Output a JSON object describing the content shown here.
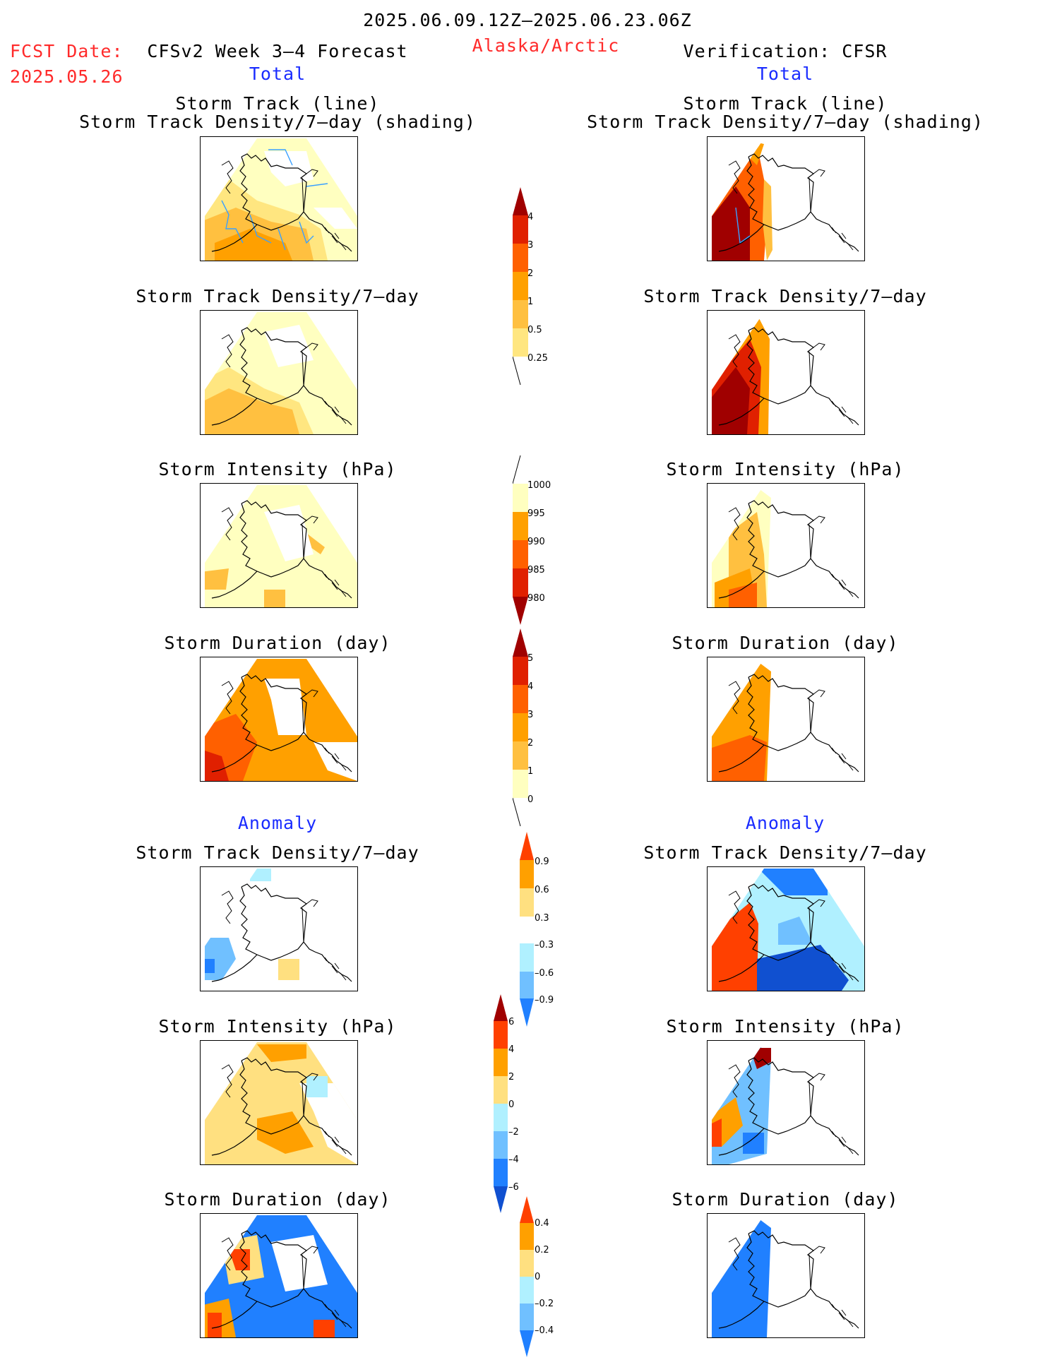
{
  "header": {
    "date_range": "2025.06.09.12Z–2025.06.23.06Z",
    "fcst_date_label": "FCST Date:",
    "fcst_date_value": "2025.05.26",
    "forecast_title": "CFSv2 Week 3–4 Forecast",
    "region": "Alaska/Arctic",
    "verification": "Verification: CFSR",
    "left_section": "Total",
    "right_section": "Total"
  },
  "panel_titles": {
    "track_line": "Storm Track (line)",
    "track_shading": "Storm Track Density/7–day (shading)",
    "density": "Storm Track Density/7–day",
    "intensity": "Storm Intensity (hPa)",
    "duration": "Storm Duration (day)"
  },
  "anomaly": {
    "left": "Anomaly",
    "right": "Anomaly"
  },
  "colorbars": {
    "density_total": [
      "4",
      "3",
      "2",
      "1",
      "0.5",
      "0.25"
    ],
    "intensity_total": [
      "1000",
      "995",
      "990",
      "985",
      "980"
    ],
    "duration_total": [
      "5",
      "4",
      "3",
      "2",
      "1",
      "0"
    ],
    "density_anom": [
      "0.9",
      "0.6",
      "0.3",
      "–0.3",
      "–0.6",
      "–0.9"
    ],
    "intensity_anom": [
      "6",
      "4",
      "2",
      "0",
      "–2",
      "–4",
      "–6"
    ],
    "duration_anom": [
      "0.4",
      "0.2",
      "0",
      "–0.2",
      "–0.4"
    ]
  },
  "colors": {
    "title_red": "#ff2a2a",
    "title_blue": "#1a2cff",
    "warm": [
      "#ffffc0",
      "#ffe680",
      "#ffc040",
      "#ffa000",
      "#ff6000",
      "#e02000",
      "#a00000"
    ],
    "anom_warm": [
      "#ffe080",
      "#ffa000",
      "#ff4000",
      "#a00000"
    ],
    "anom_cool": [
      "#b0f0ff",
      "#70c0ff",
      "#2080ff",
      "#1050d0"
    ]
  }
}
